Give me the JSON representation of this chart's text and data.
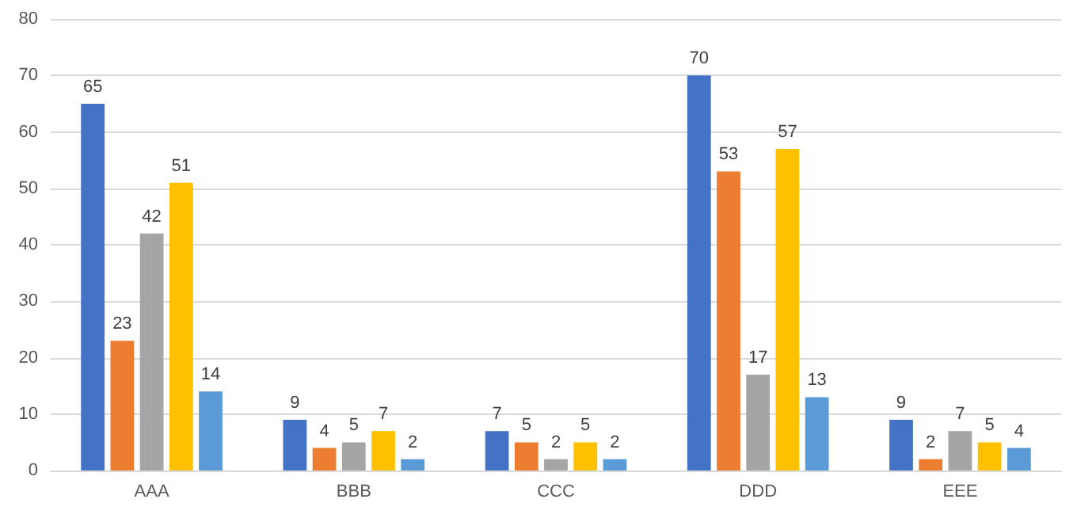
{
  "chart_data": {
    "type": "bar",
    "categories": [
      "AAA",
      "BBB",
      "CCC",
      "DDD",
      "EEE"
    ],
    "series": [
      {
        "color": "#4472c4",
        "values": [
          65,
          9,
          7,
          70,
          9
        ]
      },
      {
        "color": "#ed7d31",
        "values": [
          23,
          4,
          5,
          53,
          2
        ]
      },
      {
        "color": "#a5a5a5",
        "values": [
          42,
          5,
          2,
          17,
          7
        ]
      },
      {
        "color": "#ffc000",
        "values": [
          51,
          7,
          5,
          57,
          5
        ]
      },
      {
        "color": "#5b9bd5",
        "values": [
          14,
          2,
          2,
          13,
          4
        ]
      }
    ],
    "ylim": [
      0,
      80
    ],
    "yticks": [
      0,
      10,
      20,
      30,
      40,
      50,
      60,
      70,
      80
    ],
    "grid": true,
    "data_labels": true
  }
}
